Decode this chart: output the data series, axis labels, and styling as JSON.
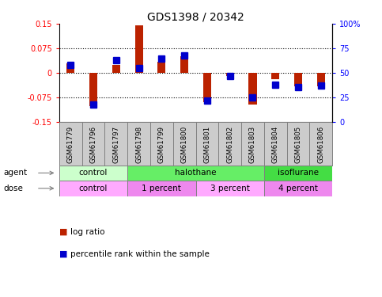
{
  "title": "GDS1398 / 20342",
  "samples": [
    "GSM61779",
    "GSM61796",
    "GSM61797",
    "GSM61798",
    "GSM61799",
    "GSM61800",
    "GSM61801",
    "GSM61802",
    "GSM61803",
    "GSM61804",
    "GSM61805",
    "GSM61806"
  ],
  "log_ratio": [
    0.03,
    -0.1,
    0.025,
    0.145,
    0.035,
    0.05,
    -0.09,
    -0.01,
    -0.095,
    -0.02,
    -0.04,
    -0.04
  ],
  "percentile": [
    58,
    18,
    63,
    55,
    65,
    68,
    22,
    47,
    25,
    38,
    36,
    37
  ],
  "ylim": [
    -0.15,
    0.15
  ],
  "yticks_left": [
    -0.15,
    -0.075,
    0,
    0.075,
    0.15
  ],
  "yticks_right": [
    0,
    25,
    50,
    75,
    100
  ],
  "bar_color": "#bb2200",
  "dot_color": "#0000cc",
  "agent_groups": [
    {
      "label": "control",
      "start": 0,
      "end": 3,
      "color": "#ccffcc"
    },
    {
      "label": "halothane",
      "start": 3,
      "end": 9,
      "color": "#66ee66"
    },
    {
      "label": "isoflurane",
      "start": 9,
      "end": 12,
      "color": "#44dd44"
    }
  ],
  "dose_groups": [
    {
      "label": "control",
      "start": 0,
      "end": 3,
      "color": "#ffaaff"
    },
    {
      "label": "1 percent",
      "start": 3,
      "end": 6,
      "color": "#ee88ee"
    },
    {
      "label": "3 percent",
      "start": 6,
      "end": 9,
      "color": "#ffaaff"
    },
    {
      "label": "4 percent",
      "start": 9,
      "end": 12,
      "color": "#ee88ee"
    }
  ],
  "legend_items": [
    {
      "label": "log ratio",
      "color": "#bb2200"
    },
    {
      "label": "percentile rank within the sample",
      "color": "#0000cc"
    }
  ]
}
